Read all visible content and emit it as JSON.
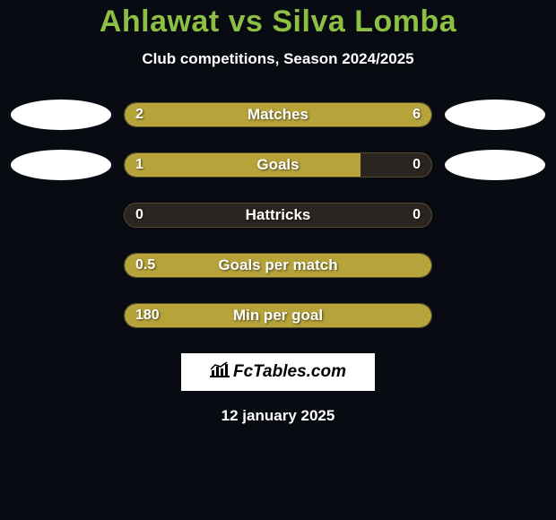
{
  "header": {
    "title": "Ahlawat vs Silva Lomba",
    "subtitle": "Club competitions, Season 2024/2025"
  },
  "stats": [
    {
      "label": "Matches",
      "left_value": "2",
      "right_value": "6",
      "left_fill_pct": 22,
      "right_fill_pct": 78,
      "show_avatars": true
    },
    {
      "label": "Goals",
      "left_value": "1",
      "right_value": "0",
      "left_fill_pct": 77,
      "right_fill_pct": 0,
      "show_avatars": true
    },
    {
      "label": "Hattricks",
      "left_value": "0",
      "right_value": "0",
      "left_fill_pct": 0,
      "right_fill_pct": 0,
      "show_avatars": false
    },
    {
      "label": "Goals per match",
      "left_value": "0.5",
      "right_value": "",
      "left_fill_pct": 100,
      "right_fill_pct": 0,
      "show_avatars": false
    },
    {
      "label": "Min per goal",
      "left_value": "180",
      "right_value": "",
      "left_fill_pct": 100,
      "right_fill_pct": 0,
      "show_avatars": false
    }
  ],
  "footer": {
    "logo_text": "FcTables.com",
    "date": "12 january 2025"
  },
  "styling": {
    "bg_color": "#080c12",
    "title_color": "#8dbf44",
    "text_color": "#ffffff",
    "bar_track_bg": "#2a2521",
    "bar_track_border": "#5a4a2e",
    "bar_fill_color": "#b6a33a",
    "avatar_bg": "#ffffff",
    "title_fontsize": 34,
    "subtitle_fontsize": 17,
    "label_fontsize": 17,
    "value_fontsize": 16
  }
}
